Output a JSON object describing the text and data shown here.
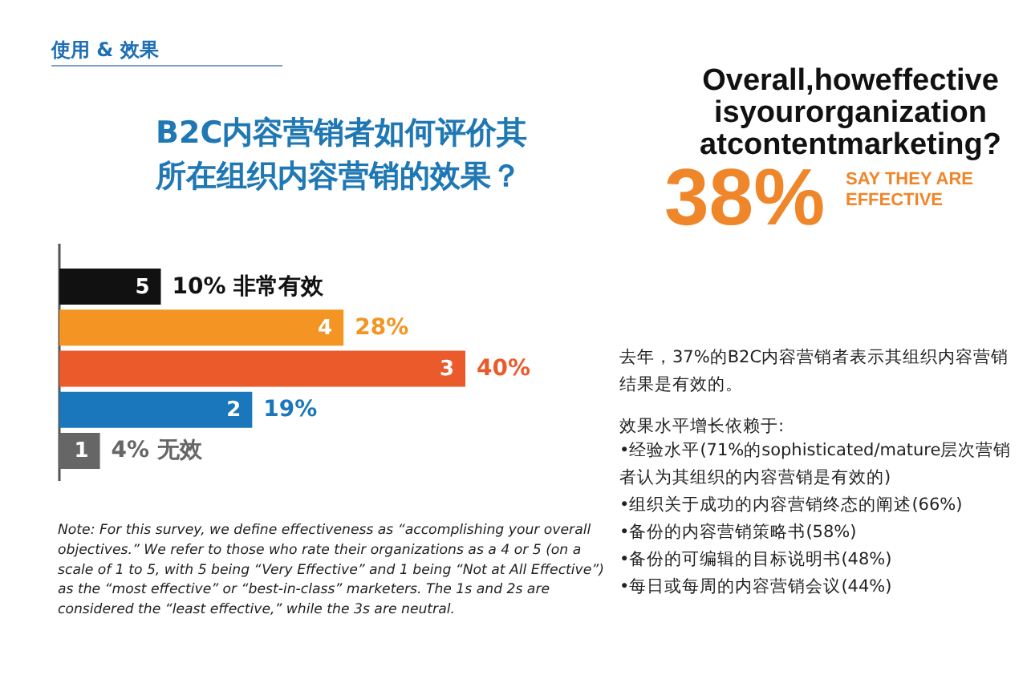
{
  "chart_data": {
    "type": "bar",
    "orientation": "horizontal",
    "title": "B2C内容营销者如何评价其所在组织内容营销的效果？",
    "categories": [
      "5",
      "4",
      "3",
      "2",
      "1"
    ],
    "values": [
      10,
      28,
      40,
      19,
      4
    ],
    "colors": [
      "#111111",
      "#f39423",
      "#eb5a2a",
      "#1a77bb",
      "#666666"
    ],
    "value_labels": [
      "10% 非常有效",
      "28%",
      "40%",
      "19%",
      "4% 无效"
    ],
    "annotations": [
      "使用 & 效果",
      "Overall,howeffective isyourorganization atcontentmarketing?",
      "38%",
      "SAY THEY ARE\nEFFECTIVE",
      "去年，37%的B2C内容营销者表示其组织内容营销结果是有效的。",
      "效果水平增长依赖于:",
      "•经验水平(71%的sophisticated/mature层次营销者认为其组织的内容营销是有效的)",
      "•组织关于成功的内容营销终态的阐述(66%)",
      "•备份的内容营销策略书(58%)",
      "•备份的可编辑的目标说明书(48%)",
      "•每日或每周的内容营销会议(44%)",
      "Note: For this survey, we define effectiveness as “accomplishing your overall\nobjectives.” We refer to those who rate their organizations as a 4 or 5 (on a\nscale of 1 to 5, with 5 being “Very Effective” and 1 being “Not at All Effective”)\nas the “most effective” or “best-in-class” marketers. The 1s and 2s are\nconsidered the “least effective,” while the 3s are neutral."
    ]
  }
}
